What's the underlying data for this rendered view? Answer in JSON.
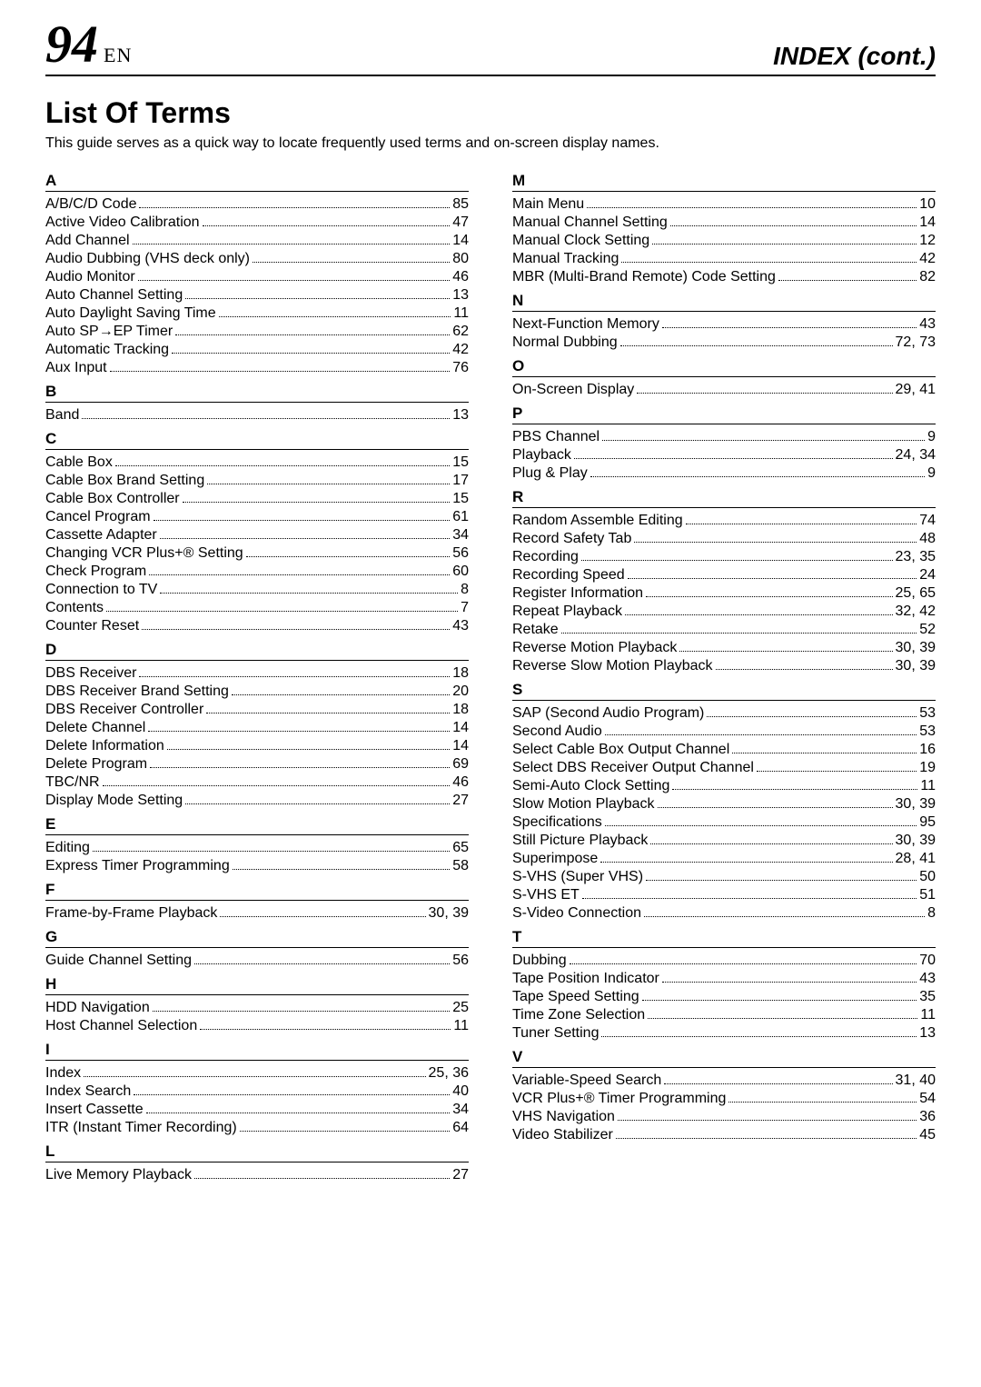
{
  "header": {
    "page_number": "94",
    "lang": "EN",
    "section": "INDEX (cont.)"
  },
  "title": "List Of Terms",
  "subtitle": "This guide serves as a quick way to locate frequently used terms and on-screen display names.",
  "left": [
    {
      "letter": "A",
      "entries": [
        {
          "term": "A/B/C/D Code",
          "page": "85"
        },
        {
          "term": "Active Video Calibration",
          "page": "47"
        },
        {
          "term": "Add Channel",
          "page": "14"
        },
        {
          "term": "Audio Dubbing (VHS deck only)",
          "page": "80"
        },
        {
          "term": "Audio Monitor",
          "page": "46"
        },
        {
          "term": "Auto Channel Setting",
          "page": "13"
        },
        {
          "term": "Auto Daylight Saving Time",
          "page": "11"
        },
        {
          "term": "Auto SP→EP Timer",
          "page": "62"
        },
        {
          "term": "Automatic Tracking",
          "page": "42"
        },
        {
          "term": "Aux Input",
          "page": "76"
        }
      ]
    },
    {
      "letter": "B",
      "entries": [
        {
          "term": "Band",
          "page": "13"
        }
      ]
    },
    {
      "letter": "C",
      "entries": [
        {
          "term": "Cable Box",
          "page": "15"
        },
        {
          "term": "Cable Box Brand Setting",
          "page": "17"
        },
        {
          "term": "Cable Box Controller",
          "page": "15"
        },
        {
          "term": "Cancel Program",
          "page": "61"
        },
        {
          "term": "Cassette Adapter",
          "page": "34"
        },
        {
          "term": "Changing VCR Plus+® Setting",
          "page": "56"
        },
        {
          "term": "Check Program",
          "page": "60"
        },
        {
          "term": "Connection to TV",
          "page": "8"
        },
        {
          "term": "Contents",
          "page": "7"
        },
        {
          "term": "Counter Reset",
          "page": "43"
        }
      ]
    },
    {
      "letter": "D",
      "entries": [
        {
          "term": "DBS Receiver",
          "page": "18"
        },
        {
          "term": "DBS Receiver Brand Setting",
          "page": "20"
        },
        {
          "term": "DBS Receiver Controller",
          "page": "18"
        },
        {
          "term": "Delete Channel",
          "page": "14"
        },
        {
          "term": "Delete Information",
          "page": "14"
        },
        {
          "term": "Delete Program",
          "page": "69"
        },
        {
          "term": "TBC/NR",
          "page": "46"
        },
        {
          "term": "Display Mode Setting",
          "page": "27"
        }
      ]
    },
    {
      "letter": "E",
      "entries": [
        {
          "term": "Editing",
          "page": "65"
        },
        {
          "term": "Express Timer Programming",
          "page": "58"
        }
      ]
    },
    {
      "letter": "F",
      "entries": [
        {
          "term": "Frame-by-Frame Playback",
          "page": "30, 39"
        }
      ]
    },
    {
      "letter": "G",
      "entries": [
        {
          "term": "Guide Channel Setting",
          "page": "56"
        }
      ]
    },
    {
      "letter": "H",
      "entries": [
        {
          "term": "HDD Navigation",
          "page": "25"
        },
        {
          "term": "Host Channel Selection",
          "page": "11"
        }
      ]
    },
    {
      "letter": "I",
      "entries": [
        {
          "term": "Index",
          "page": "25, 36"
        },
        {
          "term": "Index Search",
          "page": "40"
        },
        {
          "term": "Insert Cassette",
          "page": "34"
        },
        {
          "term": "ITR (Instant Timer Recording)",
          "page": "64"
        }
      ]
    },
    {
      "letter": "L",
      "entries": [
        {
          "term": "Live Memory Playback",
          "page": "27"
        }
      ]
    }
  ],
  "right": [
    {
      "letter": "M",
      "entries": [
        {
          "term": "Main Menu",
          "page": "10"
        },
        {
          "term": "Manual Channel Setting",
          "page": "14"
        },
        {
          "term": "Manual Clock Setting",
          "page": "12"
        },
        {
          "term": "Manual Tracking",
          "page": "42"
        },
        {
          "term": "MBR (Multi-Brand Remote) Code Setting",
          "page": "82"
        }
      ]
    },
    {
      "letter": "N",
      "entries": [
        {
          "term": "Next-Function Memory",
          "page": "43"
        },
        {
          "term": "Normal Dubbing",
          "page": "72, 73"
        }
      ]
    },
    {
      "letter": "O",
      "entries": [
        {
          "term": "On-Screen Display",
          "page": "29, 41"
        }
      ]
    },
    {
      "letter": "P",
      "entries": [
        {
          "term": "PBS Channel",
          "page": "9"
        },
        {
          "term": "Playback",
          "page": "24, 34"
        },
        {
          "term": "Plug & Play",
          "page": "9"
        }
      ]
    },
    {
      "letter": "R",
      "entries": [
        {
          "term": "Random Assemble Editing",
          "page": "74"
        },
        {
          "term": "Record Safety Tab",
          "page": "48"
        },
        {
          "term": "Recording",
          "page": "23, 35"
        },
        {
          "term": "Recording Speed",
          "page": "24"
        },
        {
          "term": "Register Information",
          "page": "25, 65"
        },
        {
          "term": "Repeat Playback",
          "page": "32, 42"
        },
        {
          "term": "Retake",
          "page": "52"
        },
        {
          "term": "Reverse Motion Playback",
          "page": "30, 39"
        },
        {
          "term": "Reverse Slow Motion Playback",
          "page": "30, 39"
        }
      ]
    },
    {
      "letter": "S",
      "entries": [
        {
          "term": "SAP (Second Audio Program)",
          "page": "53"
        },
        {
          "term": "Second Audio",
          "page": "53"
        },
        {
          "term": "Select Cable Box Output Channel",
          "page": "16"
        },
        {
          "term": "Select DBS Receiver Output Channel",
          "page": "19"
        },
        {
          "term": "Semi-Auto Clock Setting",
          "page": "11"
        },
        {
          "term": "Slow Motion Playback",
          "page": "30, 39"
        },
        {
          "term": "Specifications",
          "page": "95"
        },
        {
          "term": "Still Picture Playback",
          "page": "30, 39"
        },
        {
          "term": "Superimpose",
          "page": "28, 41"
        },
        {
          "term": "S-VHS (Super VHS)",
          "page": "50"
        },
        {
          "term": "S-VHS ET",
          "page": "51"
        },
        {
          "term": "S-Video Connection",
          "page": "8"
        }
      ]
    },
    {
      "letter": "T",
      "entries": [
        {
          "term": "Dubbing",
          "page": "70"
        },
        {
          "term": "Tape Position Indicator",
          "page": "43"
        },
        {
          "term": "Tape Speed Setting",
          "page": "35"
        },
        {
          "term": "Time Zone Selection",
          "page": "11"
        },
        {
          "term": "Tuner Setting",
          "page": "13"
        }
      ]
    },
    {
      "letter": "V",
      "entries": [
        {
          "term": "Variable-Speed Search",
          "page": "31, 40"
        },
        {
          "term": "VCR Plus+® Timer Programming",
          "page": "54"
        },
        {
          "term": "VHS Navigation",
          "page": "36"
        },
        {
          "term": "Video Stabilizer",
          "page": "45"
        }
      ]
    }
  ]
}
